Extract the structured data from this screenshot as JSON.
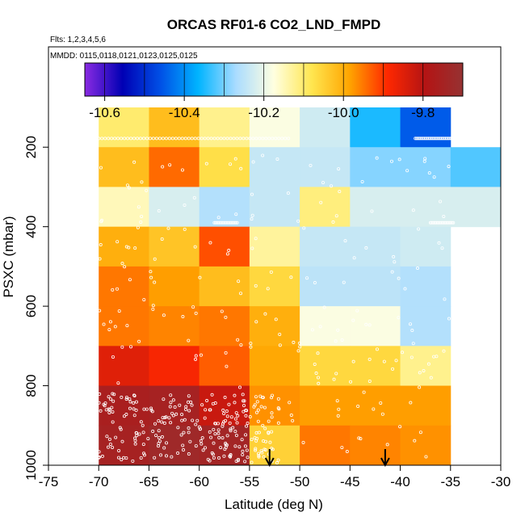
{
  "chart_data": {
    "type": "heatmap",
    "title": "ORCAS RF01-6 CO2_LND_FMPD",
    "subtitle_lines": [
      "Flts: 1,2,3,4,5,6",
      "MMDD: 0115,0118,0121,0123,0125,0125"
    ],
    "xlabel": "Latitude (deg N)",
    "ylabel": "PSXC (mbar)",
    "xlim": [
      -75,
      -30
    ],
    "ylim": [
      1000,
      100
    ],
    "x_ticks": [
      -75,
      -70,
      -65,
      -60,
      -55,
      -50,
      -45,
      -40,
      -35,
      -30
    ],
    "y_ticks": [
      200,
      400,
      600,
      800,
      1000
    ],
    "colorbar": {
      "range": [
        -10.65,
        -9.7
      ],
      "ticks": [
        -10.6,
        -10.4,
        -10.2,
        -10.0,
        -9.8
      ],
      "tick_labels": [
        "-10.6",
        "-10.4",
        "-10.2",
        "-10.0",
        "-9.8"
      ],
      "colors": [
        "#8a2be2",
        "#0000b4",
        "#0050e6",
        "#00b4ff",
        "#aadcff",
        "#ffffe0",
        "#ffe650",
        "#ffa500",
        "#ff2800",
        "#b41414",
        "#963232"
      ]
    },
    "lat_bins": [
      -70,
      -65,
      -60,
      -55,
      -50,
      -45,
      -40,
      -35,
      -30
    ],
    "pressure_bins": [
      100,
      200,
      300,
      400,
      500,
      600,
      700,
      800,
      900,
      1000
    ],
    "cells": [
      [
        -10.1,
        -10.02,
        -10.12,
        -10.18,
        -10.23,
        -10.35,
        -10.45,
        null
      ],
      [
        -10.02,
        -9.94,
        -10.07,
        -10.24,
        -10.24,
        -10.29,
        -10.29,
        -10.32
      ],
      [
        -10.15,
        -10.22,
        -10.26,
        -10.24,
        -10.11,
        -10.22,
        -10.22,
        -10.22
      ],
      [
        -10.0,
        -10.03,
        -9.92,
        -10.13,
        -10.24,
        -10.24,
        -10.23,
        null
      ],
      [
        -9.95,
        -9.98,
        -10.02,
        -10.06,
        -10.25,
        -10.25,
        -10.26,
        null
      ],
      [
        -9.95,
        -9.96,
        -9.95,
        -10.0,
        -10.18,
        -10.18,
        -10.26,
        null
      ],
      [
        -9.85,
        -9.88,
        -9.93,
        -9.99,
        -10.06,
        -10.06,
        -10.12,
        null
      ],
      [
        -9.76,
        -9.75,
        -9.82,
        -9.97,
        -9.98,
        -9.98,
        -9.98,
        null
      ],
      [
        -9.75,
        -9.73,
        -9.74,
        -10.05,
        -9.95,
        -9.96,
        -9.97,
        null
      ]
    ],
    "markers": [
      {
        "x": -53,
        "label": "arrow"
      },
      {
        "x": -41.5,
        "label": "arrow"
      }
    ],
    "grid": false
  }
}
